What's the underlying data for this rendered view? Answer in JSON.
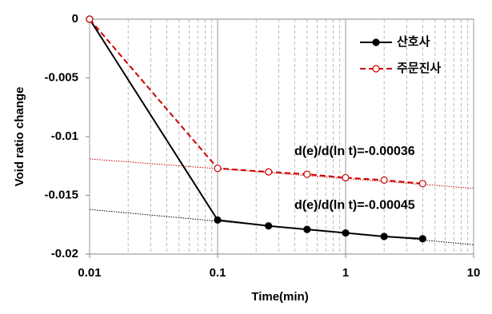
{
  "chart_data": {
    "type": "line",
    "x_label": "Time(min)",
    "y_label": "Void ratio change",
    "xlog": true,
    "xlim": [
      0.01,
      10
    ],
    "xticks": [
      0.01,
      0.1,
      1,
      10
    ],
    "ylim": [
      -0.02,
      0
    ],
    "yticks": [
      0,
      -0.005,
      -0.01,
      -0.015,
      -0.02
    ],
    "grid": "x",
    "legend": "upper right",
    "series": [
      {
        "name": "산호사",
        "color": "#000000",
        "marker": "filled",
        "dash": "solid",
        "x": [
          0.01,
          0.1,
          0.25,
          0.5,
          1,
          2,
          4
        ],
        "values": [
          0,
          -0.0171,
          -0.0176,
          -0.0179,
          -0.0182,
          -0.0185,
          -0.0187
        ]
      },
      {
        "name": "주문진사",
        "color": "#cc0000",
        "marker": "open",
        "dash": "dashed",
        "x": [
          0.01,
          0.1,
          0.25,
          0.5,
          1,
          2,
          4
        ],
        "values": [
          0,
          -0.0127,
          -0.013,
          -0.0132,
          -0.0135,
          -0.0137,
          -0.014
        ]
      }
    ],
    "trendlines": [
      {
        "color": "#cc0000",
        "x": [
          0.01,
          10
        ],
        "values": [
          -0.0119,
          -0.0144
        ]
      },
      {
        "color": "#000000",
        "x": [
          0.01,
          10
        ],
        "values": [
          -0.0162,
          -0.0192
        ]
      }
    ],
    "annotations": [
      {
        "text": "d(e)/d(ln t)=-0.00036",
        "x": 1,
        "y": -0.0121
      },
      {
        "text": "d(e)/d(ln t)=-0.00045",
        "x": 1,
        "y": -0.0167
      }
    ]
  }
}
